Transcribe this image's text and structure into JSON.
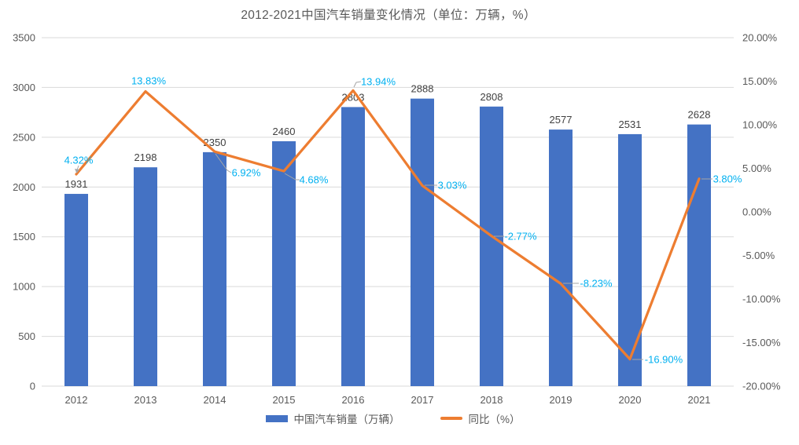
{
  "title": "2012-2021中国汽车销量变化情况（单位：万辆，%）",
  "legend": {
    "bar_label": "中国汽车销量（万辆）",
    "line_label": "同比（%）"
  },
  "colors": {
    "bar": "#4472C4",
    "line": "#ED7D31",
    "line_data_label": "#00B0F0",
    "bar_data_label": "#404040",
    "axis_text": "#595959",
    "gridline": "#D9D9D9",
    "leader_line": "#A6A6A6",
    "title_text": "#595959"
  },
  "chart_data": {
    "type": "combo",
    "title": "2012-2021中国汽车销量变化情况（单位：万辆，%）",
    "categories": [
      "2012",
      "2013",
      "2014",
      "2015",
      "2016",
      "2017",
      "2018",
      "2019",
      "2020",
      "2021"
    ],
    "series": [
      {
        "name": "中国汽车销量（万辆）",
        "type": "bar",
        "axis": "left",
        "color": "#4472C4",
        "values": [
          1931,
          2198,
          2350,
          2460,
          2803,
          2888,
          2808,
          2577,
          2531,
          2628
        ],
        "labels": [
          "1931",
          "2198",
          "2350",
          "2460",
          "2803",
          "2888",
          "2808",
          "2577",
          "2531",
          "2628"
        ]
      },
      {
        "name": "同比（%）",
        "type": "line",
        "axis": "right",
        "color": "#ED7D31",
        "label_color": "#00B0F0",
        "values": [
          4.32,
          13.83,
          6.92,
          4.68,
          13.94,
          3.03,
          -2.77,
          -8.23,
          -16.9,
          3.8
        ],
        "labels": [
          "4.32%",
          "13.83%",
          "6.92%",
          "4.68%",
          "13.94%",
          "3.03%",
          "-2.77%",
          "-8.23%",
          "-16.90%",
          "3.80%"
        ]
      }
    ],
    "y_left": {
      "min": 0,
      "max": 3500,
      "step": 500,
      "tick_values": [
        3500,
        3000,
        2500,
        2000,
        1500,
        1000,
        500,
        0
      ],
      "tick_labels": [
        "3500",
        "3000",
        "2500",
        "2000",
        "1500",
        "1000",
        "500",
        "0"
      ]
    },
    "y_right": {
      "min": -20,
      "max": 20,
      "step": 5,
      "tick_values": [
        20,
        15,
        10,
        5,
        0,
        -5,
        -10,
        -15,
        -20
      ],
      "tick_labels": [
        "20.00%",
        "15.00%",
        "10.00%",
        "5.00%",
        "0.00%",
        "-5.00%",
        "-10.00%",
        "-15.00%",
        "-20.00%"
      ]
    },
    "grid": "horizontal-only",
    "legend_position": "bottom"
  }
}
